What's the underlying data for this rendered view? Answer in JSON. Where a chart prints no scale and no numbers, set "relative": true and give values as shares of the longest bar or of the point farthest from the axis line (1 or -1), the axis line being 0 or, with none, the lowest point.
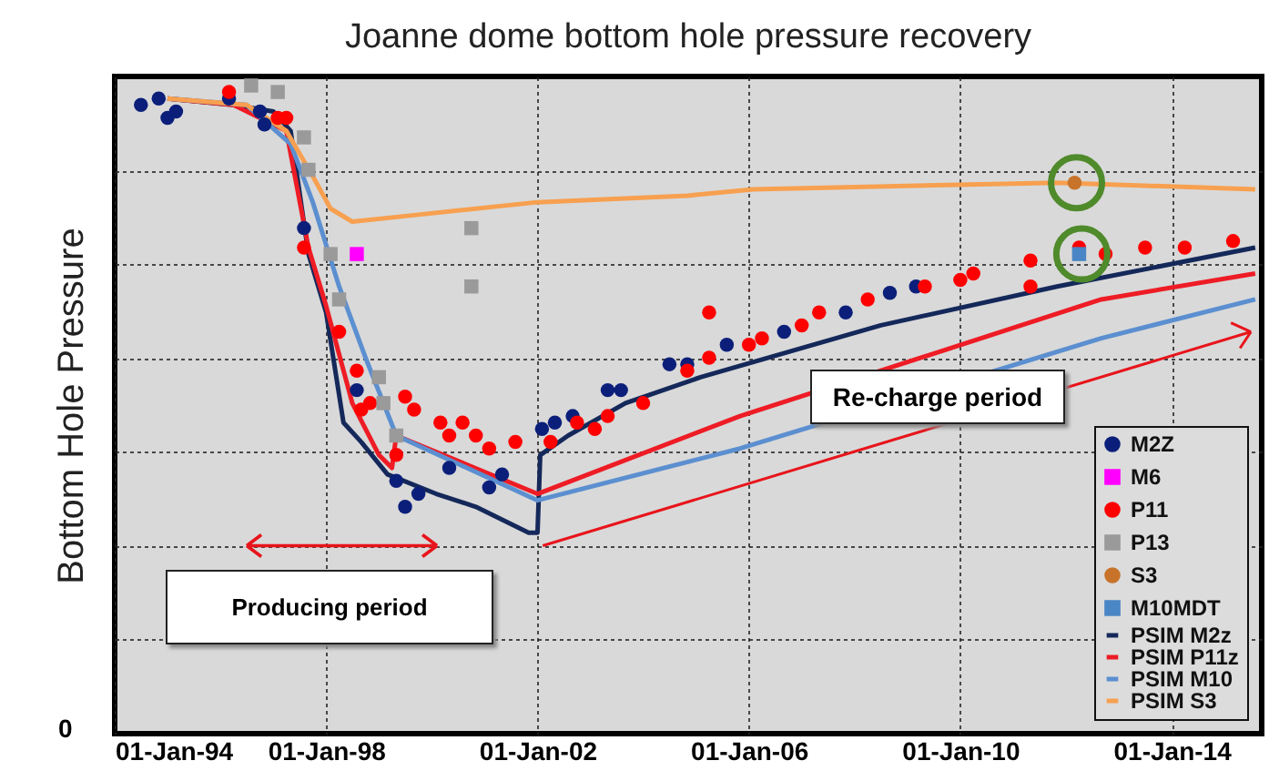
{
  "chart_data": {
    "type": "scatter",
    "title": "Joanne dome bottom hole pressure recovery",
    "ylabel": "Bottom Hole Pressure",
    "relative": true,
    "grid": true,
    "legend": "bottom right",
    "xlim": [
      "1994-01-01",
      "2015-09-15"
    ],
    "xticks": [
      {
        "value": "1994-01-01",
        "label": "01-Jan-94"
      },
      {
        "value": "1998-01-01",
        "label": "01-Jan-98"
      },
      {
        "value": "2002-01-01",
        "label": "01-Jan-02"
      },
      {
        "value": "2006-01-01",
        "label": "01-Jan-06"
      },
      {
        "value": "2010-01-01",
        "label": "01-Jan-10"
      },
      {
        "value": "2014-01-01",
        "label": "01-Jan-14"
      }
    ],
    "annotations": [
      "Producing period",
      "Re-charge period",
      "0"
    ],
    "series": [
      {
        "name": "M2Z",
        "type": "scatter",
        "marker": "circle",
        "color": "#0b1f7a",
        "x": [
          "1994-07",
          "1994-11",
          "1995-01",
          "1995-03",
          "1996-03",
          "1996-10",
          "1996-11",
          "1997-08",
          "1998-08",
          "1999-05",
          "1999-07",
          "1999-10",
          "2000-05",
          "2001-02",
          "2001-05",
          "2002-02",
          "2002-05",
          "2002-09",
          "2003-05",
          "2003-08",
          "2004-07",
          "2004-11",
          "2005-08",
          "2006-09",
          "2007-11",
          "2008-09",
          "2009-03"
        ],
        "values": [
          0.97,
          0.98,
          0.95,
          0.96,
          0.98,
          0.96,
          0.94,
          0.78,
          0.53,
          0.39,
          0.35,
          0.37,
          0.41,
          0.38,
          0.4,
          0.47,
          0.48,
          0.49,
          0.53,
          0.53,
          0.57,
          0.57,
          0.6,
          0.62,
          0.65,
          0.68,
          0.69
        ]
      },
      {
        "name": "M6",
        "type": "scatter",
        "marker": "square",
        "color": "#ff00ff",
        "x": [
          "1998-08"
        ],
        "values": [
          0.74
        ]
      },
      {
        "name": "P11",
        "type": "scatter",
        "marker": "circle",
        "color": "#ff0000",
        "x": [
          "1996-03",
          "1997-02",
          "1997-04",
          "1997-08",
          "1998-04",
          "1998-08",
          "1998-09",
          "1998-11",
          "1999-05",
          "1999-07",
          "1999-09",
          "2000-03",
          "2000-05",
          "2000-08",
          "2000-11",
          "2001-02",
          "2001-08",
          "2002-04",
          "2002-10",
          "2003-02",
          "2003-05",
          "2004-01",
          "2004-11",
          "2005-04",
          "2005-04",
          "2006-01",
          "2006-04",
          "2007-01",
          "2007-05",
          "2008-04",
          "2009-05",
          "2010-01",
          "2010-04",
          "2011-05",
          "2011-05",
          "2012-04",
          "2012-10",
          "2013-07",
          "2014-04",
          "2015-03"
        ],
        "values": [
          0.99,
          0.95,
          0.95,
          0.75,
          0.62,
          0.56,
          0.5,
          0.51,
          0.43,
          0.52,
          0.5,
          0.48,
          0.46,
          0.48,
          0.46,
          0.44,
          0.45,
          0.45,
          0.48,
          0.47,
          0.49,
          0.51,
          0.56,
          0.58,
          0.65,
          0.6,
          0.61,
          0.63,
          0.65,
          0.67,
          0.69,
          0.7,
          0.71,
          0.73,
          0.69,
          0.75,
          0.74,
          0.75,
          0.75,
          0.76
        ]
      },
      {
        "name": "P13",
        "type": "scatter",
        "marker": "square",
        "color": "#9a9a9a",
        "x": [
          "1996-08",
          "1997-02",
          "1997-08",
          "1997-09",
          "1998-02",
          "1998-04",
          "1999-01",
          "1999-02",
          "1999-05",
          "2000-10",
          "2000-10"
        ],
        "values": [
          1.0,
          0.99,
          0.92,
          0.87,
          0.74,
          0.67,
          0.55,
          0.51,
          0.46,
          0.78,
          0.69
        ]
      },
      {
        "name": "S3",
        "type": "scatter",
        "marker": "circle",
        "color": "#c8732a",
        "x": [
          "2012-03"
        ],
        "values": [
          0.85
        ]
      },
      {
        "name": "M10MDT",
        "type": "scatter",
        "marker": "square",
        "color": "#4a86c5",
        "x": [
          "2012-04"
        ],
        "values": [
          0.74
        ]
      },
      {
        "name": "PSIM M2z",
        "type": "line",
        "color": "#14285a",
        "x": [
          "1995-01",
          "1996-04",
          "1997-01",
          "1997-05",
          "1997-09",
          "1998-01",
          "1998-05",
          "1998-09",
          "1999-03",
          "2000-02",
          "2000-11",
          "2001-11",
          "2002-01-01",
          "2002-01-20",
          "2002-08",
          "2003-09",
          "2005-02",
          "2008-07",
          "2011-11",
          "2015-08"
        ],
        "values": [
          0.98,
          0.97,
          0.96,
          0.93,
          0.74,
          0.65,
          0.48,
          0.45,
          0.4,
          0.37,
          0.35,
          0.31,
          0.31,
          0.43,
          0.46,
          0.51,
          0.55,
          0.63,
          0.69,
          0.75
        ]
      },
      {
        "name": "PSIM P11z",
        "type": "line",
        "color": "#ee1c25",
        "x": [
          "1995-01",
          "1996-04",
          "1997-04",
          "1997-09",
          "1998-01",
          "1998-07",
          "1999-01",
          "1999-04",
          "1999-05",
          "2002-01",
          "2005-11",
          "2012-09",
          "2015-08"
        ],
        "values": [
          0.98,
          0.97,
          0.93,
          0.75,
          0.66,
          0.51,
          0.43,
          0.41,
          0.46,
          0.37,
          0.49,
          0.67,
          0.71
        ]
      },
      {
        "name": "PSIM M10",
        "type": "line",
        "color": "#5b8fd0",
        "x": [
          "1995-01",
          "1996-07",
          "1997-05",
          "1997-10",
          "1998-04",
          "1998-10",
          "1999-05",
          "2002-01",
          "2005-11",
          "2012-09",
          "2015-08"
        ],
        "values": [
          0.98,
          0.97,
          0.91,
          0.82,
          0.69,
          0.58,
          0.46,
          0.36,
          0.44,
          0.61,
          0.67
        ]
      },
      {
        "name": "PSIM S3",
        "type": "line",
        "color": "#f7a050",
        "x": [
          "1995-01",
          "1996-07",
          "1997-04",
          "1997-10",
          "1998-02",
          "1998-07",
          "1999-09",
          "2002-01",
          "2004-11",
          "2006-02",
          "2011-11",
          "2015-08"
        ],
        "values": [
          0.98,
          0.97,
          0.93,
          0.86,
          0.81,
          0.79,
          0.8,
          0.82,
          0.83,
          0.84,
          0.85,
          0.84
        ]
      }
    ]
  }
}
